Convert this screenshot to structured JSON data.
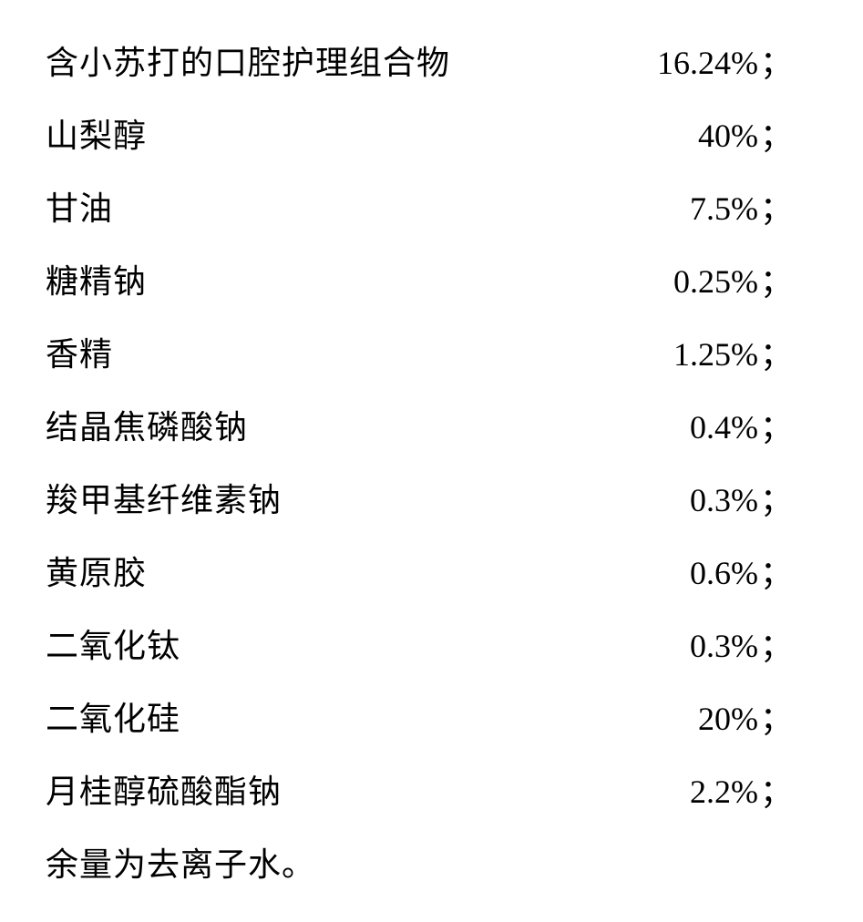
{
  "rows": [
    {
      "label": "含小苏打的口腔护理组合物",
      "value": "16.24%"
    },
    {
      "label": "山梨醇",
      "value": "40%"
    },
    {
      "label": "甘油",
      "value": "7.5%"
    },
    {
      "label": "糖精钠",
      "value": "0.25%"
    },
    {
      "label": "香精",
      "value": "1.25%"
    },
    {
      "label": "结晶焦磷酸钠",
      "value": "0.4%"
    },
    {
      "label": "羧甲基纤维素钠",
      "value": "0.3%"
    },
    {
      "label": "黄原胶",
      "value": "0.6%"
    },
    {
      "label": "二氧化钛",
      "value": "0.3%"
    },
    {
      "label": "二氧化硅",
      "value": "20%"
    },
    {
      "label": "月桂醇硫酸酯钠",
      "value": "2.2%"
    }
  ],
  "footer": "余量为去离子水。",
  "semicolon": "；",
  "styling": {
    "background_color": "#ffffff",
    "text_color": "#000000",
    "font_family_cjk": "KaiTi",
    "font_family_numeric": "Times New Roman",
    "font_size": 36,
    "row_spacing": 28,
    "content_width": 820
  }
}
